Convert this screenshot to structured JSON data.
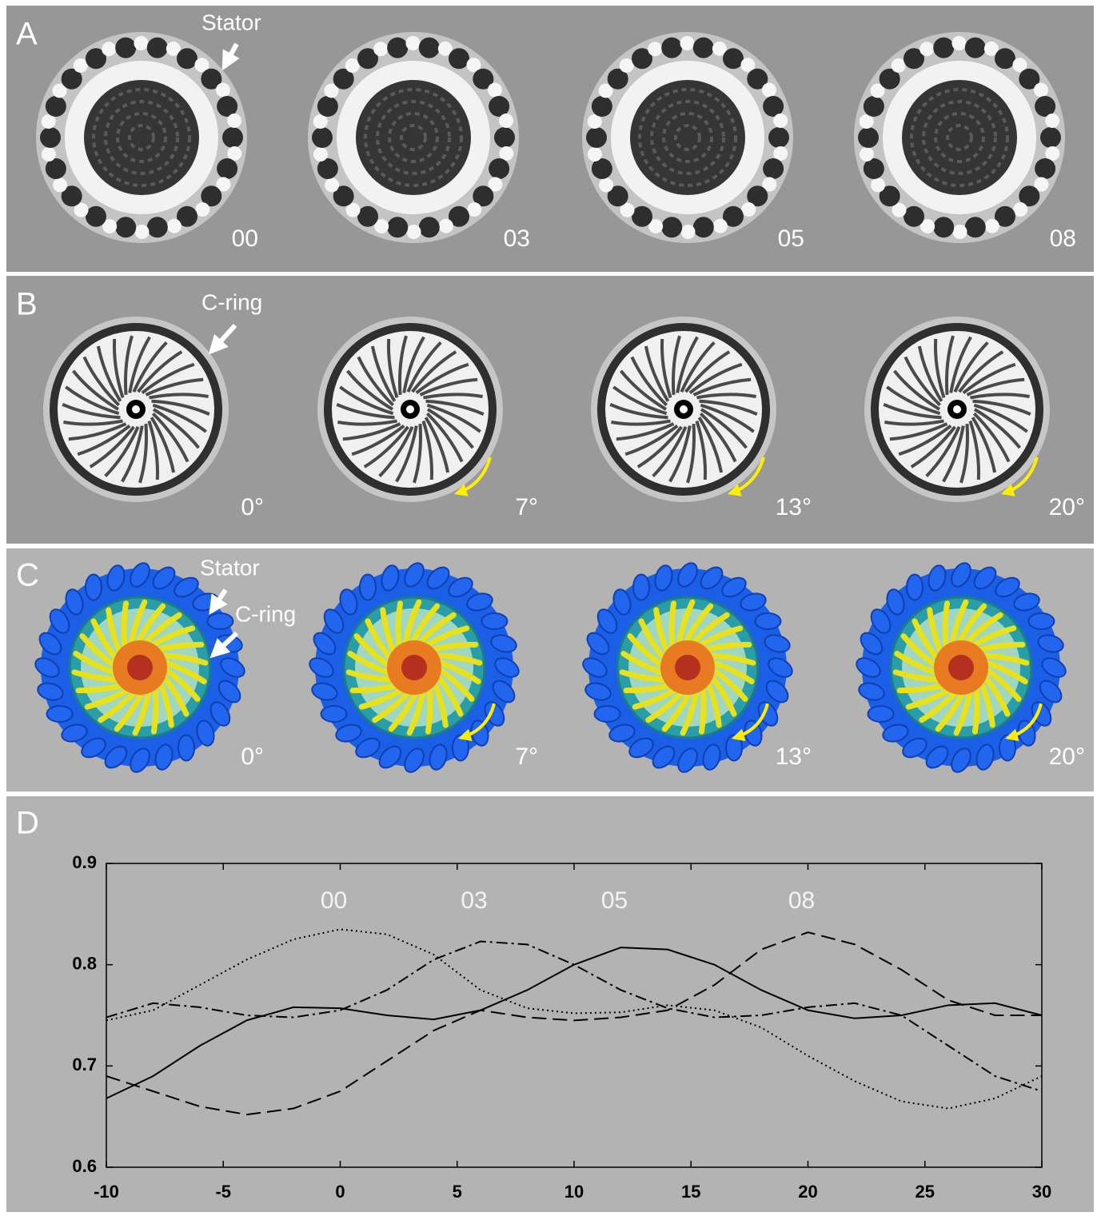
{
  "panels": [
    {
      "label": "A",
      "annotations": [
        "Stator"
      ],
      "frames": [
        "00",
        "03",
        "05",
        "08"
      ]
    },
    {
      "label": "B",
      "annotations": [
        "C-ring"
      ],
      "frames": [
        "0°",
        "7°",
        "13°",
        "20°"
      ]
    },
    {
      "label": "C",
      "annotations": [
        "Stator",
        "C-ring"
      ],
      "frames": [
        "0°",
        "7°",
        "13°",
        "20°"
      ]
    }
  ],
  "chart_data": {
    "panel_label": "D",
    "type": "line",
    "x": [
      -10,
      -8,
      -6,
      -4,
      -2,
      0,
      2,
      4,
      6,
      8,
      10,
      12,
      14,
      16,
      18,
      20,
      22,
      24,
      26,
      28,
      30
    ],
    "series": [
      {
        "name": "00",
        "color": "#000000",
        "style": "dotted",
        "values": [
          0.745,
          0.755,
          0.78,
          0.805,
          0.825,
          0.835,
          0.83,
          0.81,
          0.775,
          0.757,
          0.752,
          0.753,
          0.76,
          0.755,
          0.738,
          0.71,
          0.685,
          0.665,
          0.658,
          0.668,
          0.69
        ]
      },
      {
        "name": "03",
        "color": "#000000",
        "style": "dashdot",
        "values": [
          0.748,
          0.762,
          0.758,
          0.75,
          0.748,
          0.755,
          0.775,
          0.805,
          0.823,
          0.82,
          0.8,
          0.775,
          0.757,
          0.748,
          0.75,
          0.758,
          0.762,
          0.75,
          0.72,
          0.69,
          0.675
        ]
      },
      {
        "name": "05",
        "color": "#000000",
        "style": "solid",
        "values": [
          0.668,
          0.69,
          0.72,
          0.745,
          0.758,
          0.757,
          0.75,
          0.746,
          0.755,
          0.775,
          0.8,
          0.817,
          0.815,
          0.8,
          0.775,
          0.755,
          0.747,
          0.75,
          0.76,
          0.762,
          0.75
        ]
      },
      {
        "name": "08",
        "color": "#000000",
        "style": "dashed",
        "values": [
          0.69,
          0.675,
          0.66,
          0.652,
          0.658,
          0.675,
          0.705,
          0.735,
          0.755,
          0.748,
          0.745,
          0.748,
          0.755,
          0.78,
          0.815,
          0.832,
          0.82,
          0.795,
          0.765,
          0.75,
          0.75
        ]
      }
    ],
    "xlim": [
      -10,
      30
    ],
    "xticks": [
      -10,
      -5,
      0,
      5,
      10,
      15,
      20,
      25,
      30
    ],
    "ylim": [
      0.6,
      0.9
    ],
    "yticks": [
      0.6,
      0.7,
      0.8,
      0.9
    ]
  }
}
